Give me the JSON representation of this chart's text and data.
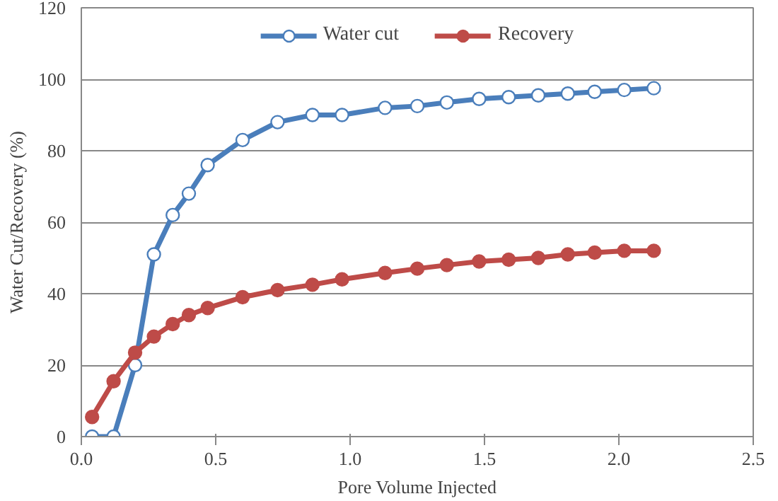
{
  "chart_data": {
    "type": "line",
    "xlabel": "Pore Volume Injected",
    "ylabel": "Water Cut/Recovery (%)",
    "xlim": [
      0,
      2.5
    ],
    "xticks": [
      {
        "value": 0,
        "label": "0.0"
      },
      {
        "value": 0.5,
        "label": "0.5"
      },
      {
        "value": 1,
        "label": "1.0"
      },
      {
        "value": 1.5,
        "label": "1.5"
      },
      {
        "value": 2,
        "label": "2.0"
      },
      {
        "value": 2.5,
        "label": "2.5"
      }
    ],
    "ylim": [
      0,
      120
    ],
    "yticks": [
      0,
      20,
      40,
      60,
      80,
      100,
      120
    ],
    "grid": "y",
    "legend": "top",
    "marker": "circle",
    "line_style": "solid",
    "x": [
      0.04,
      0.12,
      0.2,
      0.27,
      0.34,
      0.4,
      0.47,
      0.6,
      0.73,
      0.86,
      0.97,
      1.13,
      1.25,
      1.36,
      1.48,
      1.59,
      1.7,
      1.81,
      1.91,
      2.02,
      2.13
    ],
    "series": [
      {
        "name": "Water cut",
        "color": "#4a7ebb",
        "values": [
          0,
          0,
          20,
          51,
          62,
          68,
          76,
          83,
          88,
          90,
          90,
          92,
          92.5,
          93.5,
          94.5,
          95,
          95.5,
          96,
          96.5,
          97,
          97.5
        ]
      },
      {
        "name": "Recovery",
        "color": "#be4b48",
        "values": [
          5.5,
          15.5,
          23.5,
          28,
          31.5,
          34,
          36,
          39,
          41,
          42.5,
          44,
          45.8,
          47,
          48,
          49,
          49.5,
          50,
          51,
          51.5,
          52,
          52
        ]
      }
    ]
  }
}
